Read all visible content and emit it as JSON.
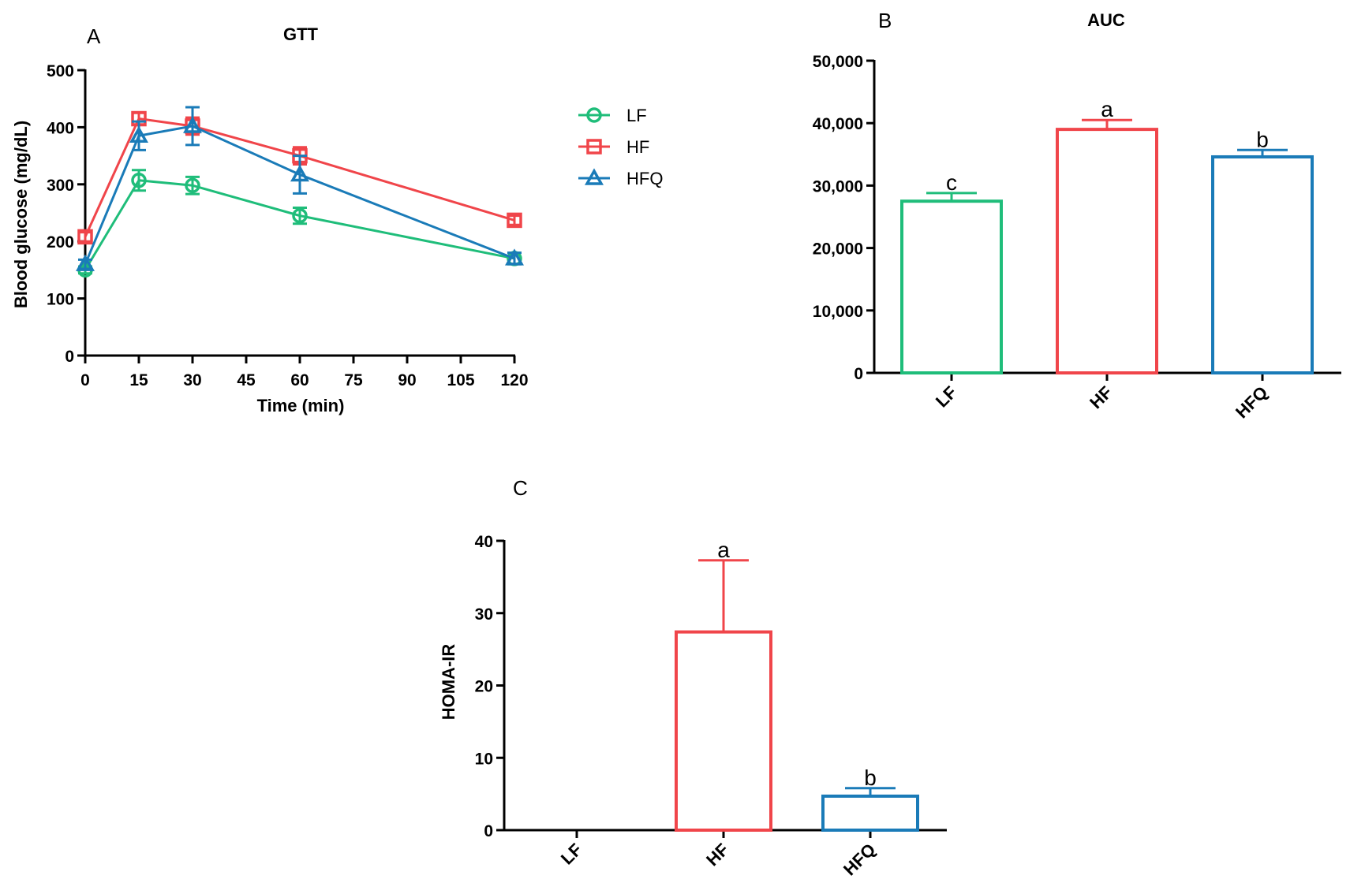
{
  "colors": {
    "LF": "#1fbd7a",
    "HF": "#f0454a",
    "HFQ": "#1a7bb8",
    "axis": "#000000"
  },
  "chart_data": [
    {
      "panel_label": "A",
      "type": "line",
      "title": "GTT",
      "xlabel": "Time (min)",
      "ylabel": "Blood glucose (mg/dL)",
      "xlim": [
        0,
        120
      ],
      "ylim": [
        0,
        500
      ],
      "xticks": [
        "0",
        "15",
        "30",
        "45",
        "60",
        "75",
        "90",
        "105",
        "120"
      ],
      "yticks": [
        "0",
        "100",
        "200",
        "300",
        "400",
        "500"
      ],
      "x": [
        0,
        15,
        30,
        60,
        120
      ],
      "legend": {
        "position": "right",
        "entries": [
          "LF",
          "HF",
          "HFQ"
        ]
      },
      "series": [
        {
          "name": "LF",
          "marker": "circle",
          "values": [
            150,
            307,
            298,
            245,
            170
          ],
          "errors": [
            6,
            18,
            15,
            14,
            10
          ]
        },
        {
          "name": "HF",
          "marker": "square",
          "values": [
            208,
            415,
            402,
            350,
            237
          ],
          "errors": [
            8,
            10,
            15,
            15,
            8
          ]
        },
        {
          "name": "HFQ",
          "marker": "triangle",
          "values": [
            160,
            385,
            402,
            317,
            170
          ],
          "errors": [
            8,
            25,
            33,
            33,
            10
          ]
        }
      ]
    },
    {
      "panel_label": "B",
      "type": "bar",
      "title": "AUC",
      "xlabel": "",
      "ylabel": "",
      "categories": [
        "LF",
        "HF",
        "HFQ"
      ],
      "values": [
        27500,
        39000,
        34600
      ],
      "errors": [
        1300,
        1500,
        1100
      ],
      "annotations": [
        "c",
        "a",
        "b"
      ],
      "ylim": [
        0,
        50000
      ],
      "yticks": [
        "0",
        "10,000",
        "20,000",
        "30,000",
        "40,000",
        "50,000"
      ]
    },
    {
      "panel_label": "C",
      "type": "bar",
      "title": "",
      "xlabel": "",
      "ylabel": "HOMA-IR",
      "categories": [
        "LF",
        "HF",
        "HFQ"
      ],
      "values": [
        0,
        27.4,
        4.7
      ],
      "errors": [
        0,
        9.9,
        1.1
      ],
      "annotations": [
        "",
        "a",
        "b"
      ],
      "ylim": [
        0,
        40
      ],
      "yticks": [
        "0",
        "10",
        "20",
        "30",
        "40"
      ]
    }
  ]
}
